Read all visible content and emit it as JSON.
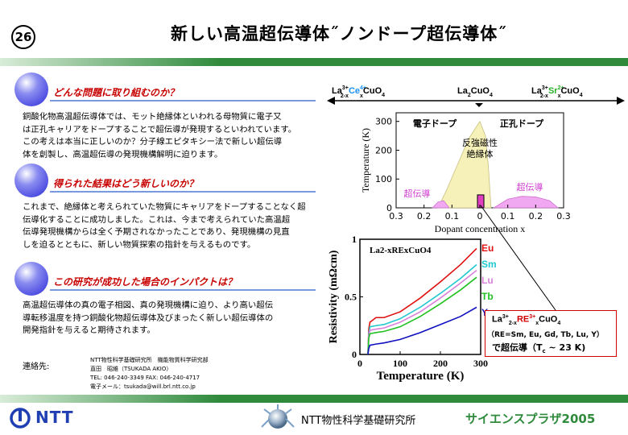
{
  "header": {
    "number": "26",
    "title": "新しい高温超伝導体˝ノンドープ超伝導体˝"
  },
  "sections": [
    {
      "heading": "どんな問題に取り組むのか？",
      "lines": [
        "銅酸化物高温超伝導体では、モット絶縁体といわれる母物質に電子又",
        "は正孔キャリアをドープすることで超伝導が発現するといわれています。",
        "この考えは本当に正しいのか？分子線エピタキシー法で新しい超伝導",
        "体を創製し、高温超伝導の発現機構解明に迫ります。"
      ]
    },
    {
      "heading": "得られた結果はどう新しいのか？",
      "lines": [
        "これまで、絶縁体と考えられていた物質にキャリアをドープすることなく超",
        "伝導化することに成功しました。これは、今まで考えられていた高温超",
        "伝導発現機構からは全く予期されなかったことであり、発現機構の見直",
        "しを迫るとともに、新しい物質探索の指針を与えるものです。"
      ]
    },
    {
      "heading": "この研究が成功した場合のインパクトは？",
      "lines": [
        "高温超伝導体の真の電子相図、真の発現機構に迫り、より高い超伝",
        "導転移温度を持つ銅酸化物超伝導体及びまったく新しい超伝導体の",
        "開発指針を与えると期待されます。"
      ]
    }
  ],
  "contact": {
    "label": "連絡先:",
    "lines": [
      "NTT物性科学基礎研究所　機能物質科学研究部",
      "直田　昭維（TSUKADA AKIO）",
      "TEL: 046-240-3349  FAX: 046-240-4717",
      "電子メール：tsukada@will.brl.ntt.co.jp"
    ]
  },
  "footer": {
    "ntt": "NTT",
    "lab": "NTT物性科学基礎研究所",
    "event": "サイエンスプラザ2005"
  },
  "formulas": {
    "left": {
      "a": "La",
      "a_sup": "3+",
      "a_sub": "2-x",
      "b": "Ce",
      "b_sup": "4+",
      "b_sub": "x",
      "c": "CuO",
      "c_sub": "4"
    },
    "mid": {
      "a": "La",
      "a_sub": "2",
      "c": "CuO",
      "c_sub": "4"
    },
    "right": {
      "a": "La",
      "a_sup": "3+",
      "a_sub": "2-x",
      "b": "Sr",
      "b_sup": "2+",
      "b_sub": "x",
      "c": "CuO",
      "c_sub": "4"
    }
  },
  "chart_data": [
    {
      "type": "area",
      "title": "",
      "xlabel": "Dopant concentration x",
      "ylabel": "Temperature (K)",
      "x_ticks": [
        "0.3",
        "0.2",
        "0.1",
        "0",
        "0.1",
        "0.2",
        "0.3"
      ],
      "x_range": [
        -0.3,
        0.3
      ],
      "y_ticks": [
        0,
        100,
        200,
        300
      ],
      "ylim": [
        0,
        330
      ],
      "annotations": [
        "電子ドープ",
        "正孔ドープ",
        "反強磁性",
        "絶縁体",
        "超伝導",
        "超伝導"
      ],
      "colors": {
        "antiferromagnetic": "#f5f1b8",
        "superconducting": "#f0a8f0",
        "marker": "#e040c0"
      },
      "series": [
        {
          "name": "反強磁性絶縁体",
          "x": [
            -0.15,
            -0.12,
            -0.08,
            -0.04,
            0,
            0.02,
            0.03,
            0.04
          ],
          "y": [
            0,
            60,
            150,
            240,
            300,
            250,
            150,
            0
          ]
        },
        {
          "name": "超伝導",
          "x": [
            -0.17,
            -0.15,
            -0.13,
            -0.11
          ],
          "y": [
            0,
            20,
            25,
            0
          ]
        },
        {
          "name": "超伝導",
          "x": [
            0.05,
            0.1,
            0.15,
            0.2,
            0.25,
            0.28
          ],
          "y": [
            0,
            30,
            40,
            38,
            25,
            0
          ]
        }
      ]
    },
    {
      "type": "line",
      "title": "La2-xRExCuO4",
      "xlabel": "Temperature (K)",
      "ylabel": "Resistivity (mΩcm)",
      "xlim": [
        0,
        300
      ],
      "ylim": [
        0,
        1
      ],
      "x_ticks": [
        0,
        100,
        200,
        300
      ],
      "y_ticks": [
        0,
        0.5,
        1
      ],
      "legend": "right",
      "colors": {
        "Eu": "#e01010",
        "Sm": "#20c8d0",
        "Lu": "#d880d8",
        "Tb": "#20c020",
        "Y": "#1010c0"
      },
      "series": [
        {
          "name": "Eu",
          "x": [
            20,
            22,
            25,
            40,
            60,
            100,
            150,
            200,
            250,
            290
          ],
          "y": [
            0,
            0.22,
            0.28,
            0.32,
            0.32,
            0.37,
            0.49,
            0.63,
            0.78,
            0.92
          ]
        },
        {
          "name": "Sm",
          "x": [
            20,
            22,
            25,
            40,
            60,
            100,
            150,
            200,
            250,
            290
          ],
          "y": [
            0,
            0.18,
            0.24,
            0.25,
            0.26,
            0.31,
            0.41,
            0.53,
            0.66,
            0.78
          ]
        },
        {
          "name": "Lu",
          "x": [
            20,
            22,
            25,
            40,
            60,
            100,
            150,
            200,
            250,
            290
          ],
          "y": [
            0,
            0.16,
            0.21,
            0.22,
            0.23,
            0.28,
            0.37,
            0.49,
            0.62,
            0.73
          ]
        },
        {
          "name": "Tb",
          "x": [
            20,
            22,
            25,
            40,
            60,
            100,
            150,
            200,
            250,
            290
          ],
          "y": [
            0,
            0.14,
            0.18,
            0.19,
            0.2,
            0.24,
            0.33,
            0.44,
            0.56,
            0.67
          ]
        },
        {
          "name": "Y",
          "x": [
            20,
            22,
            25,
            40,
            60,
            100,
            150,
            200,
            250,
            290
          ],
          "y": [
            0,
            0.05,
            0.08,
            0.09,
            0.1,
            0.13,
            0.19,
            0.26,
            0.33,
            0.41
          ]
        }
      ]
    }
  ],
  "callout": {
    "formula": {
      "a": "La",
      "a_sup": "3+",
      "a_sub": "2-x",
      "b": "RE",
      "b_sup": "3+",
      "b_sub": "x",
      "c": "CuO",
      "c_sub": "4"
    },
    "re_list": "（RE=Sm, Eu, Gd, Tb, Lu, Y）",
    "line3": "で超伝導（T",
    "line3_sub": "c",
    "line3_end": " ~ 23 K)"
  }
}
